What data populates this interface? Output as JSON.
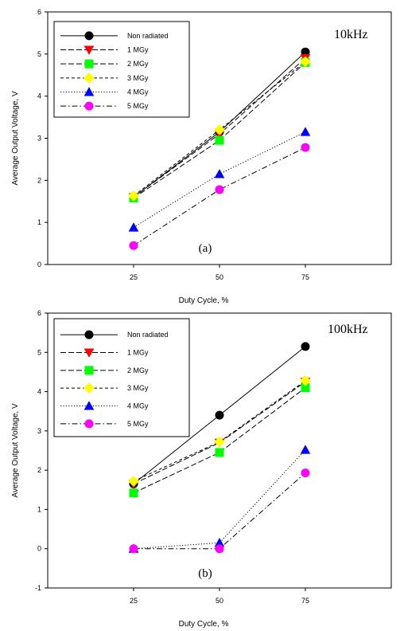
{
  "chart_data": [
    {
      "type": "line",
      "panel_label": "(a)",
      "frequency_label": "10kHz",
      "xlabel": "Duty Cycle, %",
      "ylabel": "Average Output Voltage, V",
      "ylim": [
        0,
        6
      ],
      "yticks": [
        "0",
        "1",
        "2",
        "3",
        "4",
        "5",
        "6"
      ],
      "xticks": [
        "25",
        "50",
        "75"
      ],
      "x": [
        25,
        50,
        75
      ],
      "legend_position": "top-left",
      "series": [
        {
          "name": "Non radiated",
          "values": [
            1.6,
            3.15,
            5.05
          ],
          "color": "#000000",
          "marker": "circle",
          "dash": "solid"
        },
        {
          "name": "1 MGy",
          "values": [
            1.6,
            3.1,
            4.9
          ],
          "color": "#ff0000",
          "marker": "triangle-down",
          "dash": "long-dash"
        },
        {
          "name": "2 MGy",
          "values": [
            1.58,
            2.95,
            4.8
          ],
          "color": "#00ff00",
          "marker": "square",
          "dash": "long-dash"
        },
        {
          "name": "3 MGy",
          "values": [
            1.63,
            3.2,
            4.82
          ],
          "color": "#ffff00",
          "marker": "diamond",
          "dash": "short-dash"
        },
        {
          "name": "4 MGy",
          "values": [
            0.88,
            2.15,
            3.15
          ],
          "color": "#0000ff",
          "marker": "triangle-up",
          "dash": "dotted"
        },
        {
          "name": "5 MGy",
          "values": [
            0.45,
            1.78,
            2.78
          ],
          "color": "#ff00ff",
          "marker": "circle",
          "dash": "dash-dot"
        }
      ]
    },
    {
      "type": "line",
      "panel_label": "(b)",
      "frequency_label": "100kHz",
      "xlabel": "Duty Cycle, %",
      "ylabel": "Average Output Voltage, V",
      "ylim": [
        -1,
        6
      ],
      "yticks": [
        "-1",
        "0",
        "1",
        "2",
        "3",
        "4",
        "5",
        "6"
      ],
      "xticks": [
        "25",
        "50",
        "75"
      ],
      "x": [
        25,
        50,
        75
      ],
      "legend_position": "top-left",
      "series": [
        {
          "name": "Non radiated",
          "values": [
            1.65,
            3.4,
            5.15
          ],
          "color": "#000000",
          "marker": "circle",
          "dash": "solid"
        },
        {
          "name": "1 MGy",
          "values": [
            1.65,
            2.7,
            4.25
          ],
          "color": "#ff0000",
          "marker": "triangle-down",
          "dash": "long-dash"
        },
        {
          "name": "2 MGy",
          "values": [
            1.42,
            2.45,
            4.1
          ],
          "color": "#00ff00",
          "marker": "square",
          "dash": "long-dash"
        },
        {
          "name": "3 MGy",
          "values": [
            1.72,
            2.72,
            4.28
          ],
          "color": "#ffff00",
          "marker": "diamond",
          "dash": "short-dash"
        },
        {
          "name": "4 MGy",
          "values": [
            0,
            0.15,
            2.52
          ],
          "color": "#0000ff",
          "marker": "triangle-up",
          "dash": "dotted"
        },
        {
          "name": "5 MGy",
          "values": [
            0,
            0,
            1.93
          ],
          "color": "#ff00ff",
          "marker": "circle",
          "dash": "dash-dot"
        }
      ]
    }
  ]
}
